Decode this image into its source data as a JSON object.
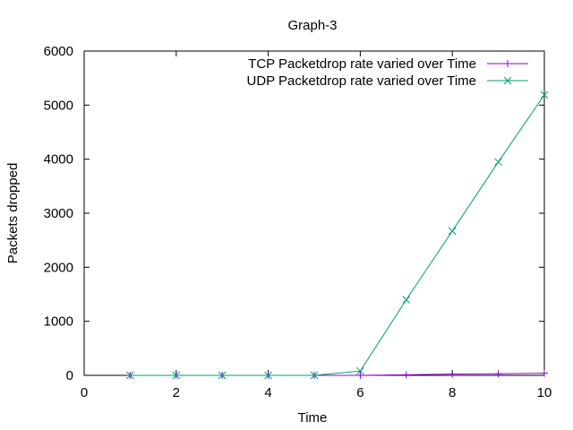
{
  "chart_data": {
    "type": "line",
    "title": "Graph-3",
    "xlabel": "Time",
    "ylabel": "Packets dropped",
    "xlim": [
      0,
      10
    ],
    "ylim": [
      0,
      6000
    ],
    "xticks": [
      0,
      2,
      4,
      6,
      8,
      10
    ],
    "yticks": [
      0,
      1000,
      2000,
      3000,
      4000,
      5000,
      6000
    ],
    "grid": false,
    "legend_position": "top-right",
    "series": [
      {
        "name": "TCP Packetdrop rate varied over Time",
        "color": "#9400d3",
        "marker": "plus",
        "x": [
          1,
          2,
          3,
          4,
          5,
          6,
          7,
          8,
          9,
          10
        ],
        "y": [
          0,
          0,
          0,
          0,
          0,
          0,
          10,
          25,
          30,
          40
        ]
      },
      {
        "name": "UDP Packetdrop rate varied over Time",
        "color": "#009e73",
        "marker": "cross",
        "x": [
          1,
          2,
          3,
          4,
          5,
          6,
          7,
          8,
          9,
          10
        ],
        "y": [
          0,
          0,
          0,
          0,
          0,
          80,
          1400,
          2670,
          3950,
          5190
        ]
      }
    ]
  }
}
